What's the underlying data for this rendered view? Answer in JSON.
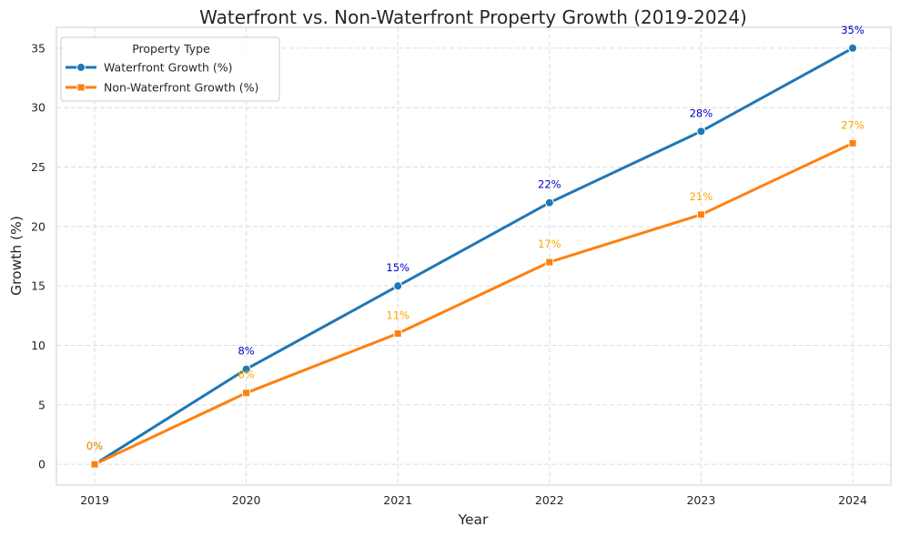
{
  "chart_data": {
    "type": "line",
    "title": "Waterfront vs. Non-Waterfront Property Growth (2019-2024)",
    "xlabel": "Year",
    "ylabel": "Growth (%)",
    "x": [
      "2019",
      "2020",
      "2021",
      "2022",
      "2023",
      "2024"
    ],
    "ylim": [
      -1.75,
      36.75
    ],
    "yticks": [
      0,
      5,
      10,
      15,
      20,
      25,
      30,
      35
    ],
    "grid": true,
    "legend": {
      "title": "Property Type",
      "placement": "top-left"
    },
    "series": [
      {
        "name": "Waterfront Growth (%)",
        "values": [
          0,
          8,
          15,
          22,
          28,
          35
        ],
        "labels": [
          "0%",
          "8%",
          "15%",
          "22%",
          "28%",
          "35%"
        ],
        "color": "#1f77b4",
        "label_color": "#0000cc",
        "marker": "circle"
      },
      {
        "name": "Non-Waterfront Growth (%)",
        "values": [
          0,
          6,
          11,
          17,
          21,
          27
        ],
        "labels": [
          "0%",
          "6%",
          "11%",
          "17%",
          "21%",
          "27%"
        ],
        "color": "#ff7f0e",
        "label_color": "#ffa500",
        "marker": "square"
      }
    ]
  }
}
